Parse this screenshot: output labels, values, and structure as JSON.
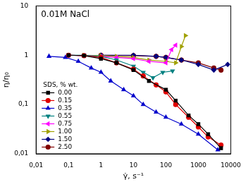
{
  "chart_data": {
    "type": "line",
    "title": "0.01M NaCl",
    "x_label": "γ̇, s⁻¹",
    "y_label": "η/η₀",
    "log": true,
    "grid": false,
    "legend": "lower left",
    "legend_title": "SDS, % wt.",
    "xlim": [
      0.01,
      10000
    ],
    "ylim": [
      0.01,
      10
    ],
    "xticks": [
      {
        "value": 0.01,
        "label": "0,01"
      },
      {
        "value": 0.1,
        "label": "0,1"
      },
      1,
      10,
      100,
      1000,
      10000
    ],
    "yticks": [
      {
        "value": 0.01,
        "label": "0,01"
      },
      {
        "value": 0.1,
        "label": "0,1"
      },
      1,
      10
    ],
    "series": [
      {
        "name": "0.00",
        "color": "#000000",
        "marker": "square",
        "x": [
          0.1,
          0.3,
          1,
          3,
          10,
          30,
          100,
          200,
          500,
          1000,
          2000,
          5000
        ],
        "values": [
          1.0,
          0.98,
          0.85,
          0.7,
          0.5,
          0.3,
          0.2,
          0.12,
          0.06,
          0.04,
          0.025,
          0.013
        ]
      },
      {
        "name": "0.15",
        "color": "#e00000",
        "marker": "circle",
        "x": [
          0.1,
          0.3,
          1,
          3,
          10,
          20,
          50,
          100,
          200,
          500,
          1000,
          2000,
          5000
        ],
        "values": [
          1.0,
          0.98,
          0.9,
          0.7,
          0.52,
          0.38,
          0.25,
          0.18,
          0.1,
          0.055,
          0.035,
          0.022,
          0.015
        ]
      },
      {
        "name": "0.35",
        "color": "#0000cc",
        "marker": "triangle-up",
        "x": [
          0.025,
          0.08,
          0.2,
          0.5,
          1,
          2,
          5,
          10,
          20,
          50,
          100,
          300,
          1000,
          4000
        ],
        "values": [
          0.95,
          0.9,
          0.75,
          0.55,
          0.45,
          0.3,
          0.2,
          0.15,
          0.1,
          0.07,
          0.055,
          0.04,
          0.025,
          0.012
        ]
      },
      {
        "name": "0.55",
        "color": "#008080",
        "marker": "triangle-down",
        "x": [
          0.1,
          0.3,
          1,
          3,
          10,
          20,
          40,
          80,
          160
        ],
        "values": [
          1.0,
          1.0,
          0.95,
          0.8,
          0.6,
          0.45,
          0.35,
          0.45,
          0.48
        ]
      },
      {
        "name": "0.75",
        "color": "#ff00ff",
        "marker": "triangle-left",
        "x": [
          0.1,
          0.3,
          1,
          3,
          10,
          30,
          100,
          150,
          200
        ],
        "values": [
          1.0,
          0.98,
          0.95,
          0.9,
          0.85,
          0.75,
          0.7,
          1.3,
          1.6
        ]
      },
      {
        "name": "1.00",
        "color": "#a0a000",
        "marker": "triangle-right",
        "x": [
          0.3,
          1,
          3,
          10,
          30,
          100,
          200,
          300,
          400
        ],
        "values": [
          1.0,
          0.98,
          0.95,
          0.9,
          0.8,
          0.75,
          0.7,
          1.5,
          2.5
        ]
      },
      {
        "name": "1.50",
        "color": "#000080",
        "marker": "diamond",
        "x": [
          1,
          10,
          50,
          100,
          300,
          1000,
          3000,
          8000
        ],
        "values": [
          1.0,
          1.0,
          0.95,
          0.9,
          0.8,
          0.65,
          0.5,
          0.65
        ]
      },
      {
        "name": "2.50",
        "color": "#800000",
        "marker": "hexagon",
        "x": [
          1,
          10,
          50,
          100,
          300,
          1000,
          3000,
          5000
        ],
        "values": [
          1.0,
          0.98,
          0.95,
          0.9,
          0.8,
          0.7,
          0.55,
          0.5
        ]
      }
    ]
  }
}
